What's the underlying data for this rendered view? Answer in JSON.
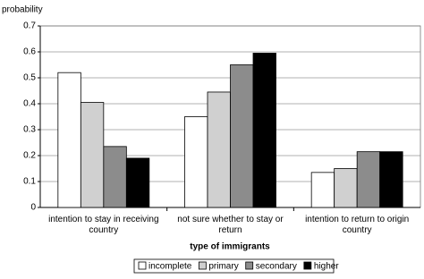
{
  "chart_data": {
    "type": "bar",
    "y_label": "probability",
    "x_label": "type of immigrants",
    "categories": [
      "intention to stay in receiving country",
      "not sure whether to stay or return",
      "intention to return to origin country"
    ],
    "series": [
      {
        "name": "incomplete",
        "color": "#ffffff",
        "values": [
          0.52,
          0.35,
          0.135
        ]
      },
      {
        "name": "primary",
        "color": "#d0d0d0",
        "values": [
          0.405,
          0.445,
          0.15
        ]
      },
      {
        "name": "secondary",
        "color": "#8c8c8c",
        "values": [
          0.235,
          0.55,
          0.215
        ]
      },
      {
        "name": "higher",
        "color": "#000000",
        "values": [
          0.19,
          0.595,
          0.215
        ]
      }
    ],
    "ylim": [
      0,
      0.7
    ],
    "yticks": [
      0,
      0.1,
      0.2,
      0.3,
      0.4,
      0.5,
      0.6,
      0.7
    ],
    "grid": true,
    "legend": "bottom"
  }
}
